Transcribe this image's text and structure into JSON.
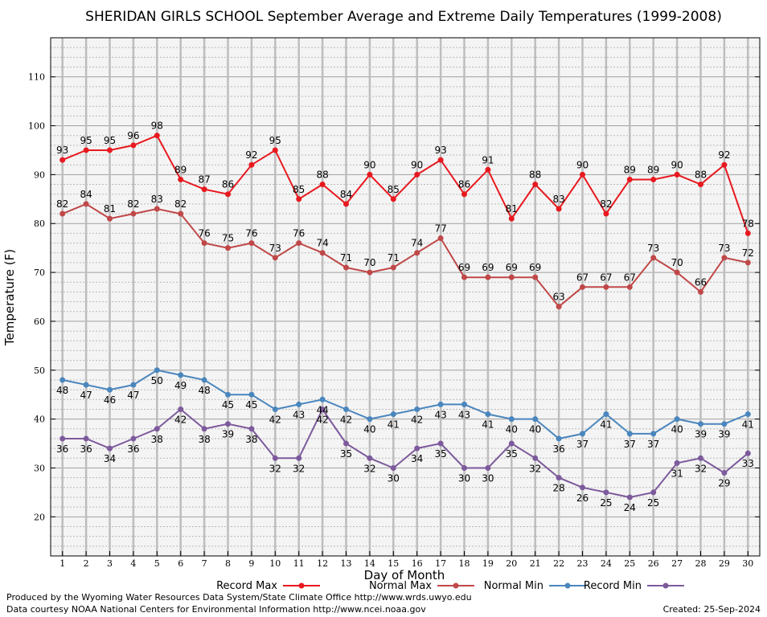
{
  "chart_data": {
    "type": "line",
    "title": "SHERIDAN GIRLS SCHOOL September Average and Extreme Daily Temperatures (1999-2008)",
    "xlabel": "Day of Month",
    "ylabel": "Temperature (F)",
    "x": [
      "1",
      "2",
      "3",
      "4",
      "5",
      "6",
      "7",
      "8",
      "9",
      "10",
      "11",
      "12",
      "13",
      "14",
      "15",
      "16",
      "17",
      "18",
      "19",
      "20",
      "21",
      "22",
      "23",
      "24",
      "25",
      "26",
      "27",
      "28",
      "29",
      "30"
    ],
    "xlim": [
      0.5,
      30.5
    ],
    "ylim": [
      12,
      118
    ],
    "yticks": [
      20,
      30,
      40,
      50,
      60,
      70,
      80,
      90,
      100,
      110
    ],
    "grid": true,
    "legend_position": "bottom",
    "series": [
      {
        "name": "Record Max",
        "color": "#e8191f",
        "label_side": "above",
        "values": [
          93,
          95,
          95,
          96,
          98,
          89,
          87,
          86,
          92,
          95,
          85,
          88,
          84,
          90,
          85,
          90,
          93,
          86,
          91,
          81,
          88,
          83,
          90,
          82,
          89,
          89,
          90,
          88,
          92,
          78
        ]
      },
      {
        "name": "Normal Max",
        "color": "#c04848",
        "label_side": "above",
        "values": [
          82,
          84,
          81,
          82,
          83,
          82,
          76,
          75,
          76,
          73,
          76,
          74,
          71,
          70,
          71,
          74,
          77,
          69,
          69,
          69,
          69,
          63,
          67,
          67,
          67,
          73,
          70,
          66,
          73,
          72
        ]
      },
      {
        "name": "Normal Min",
        "color": "#4a86be",
        "label_side": "below",
        "values": [
          48,
          47,
          46,
          47,
          50,
          49,
          48,
          45,
          45,
          42,
          43,
          44,
          42,
          40,
          41,
          42,
          43,
          43,
          41,
          40,
          40,
          36,
          37,
          41,
          37,
          37,
          40,
          39,
          39,
          41
        ]
      },
      {
        "name": "Record Min",
        "color": "#7d5a9c",
        "label_side": "below",
        "values": [
          36,
          36,
          34,
          36,
          38,
          42,
          38,
          39,
          38,
          32,
          32,
          42,
          35,
          32,
          30,
          34,
          35,
          30,
          30,
          35,
          32,
          28,
          26,
          25,
          24,
          25,
          31,
          32,
          29,
          33
        ]
      }
    ],
    "footer": {
      "produced_by": "Produced by the Wyoming Water Resources Data System/State Climate Office http://www.wrds.uwyo.edu",
      "courtesy": "Data courtesy NOAA National Centers for Environmental Information http://www.ncei.noaa.gov",
      "created": "Created:  25-Sep-2024"
    }
  }
}
